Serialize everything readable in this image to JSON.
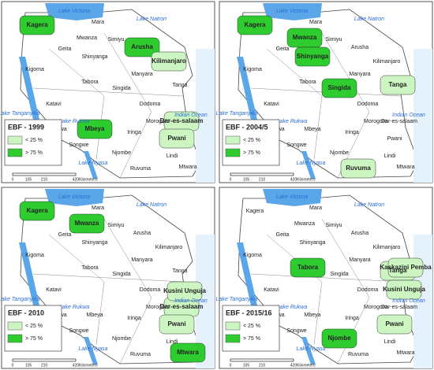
{
  "panels": [
    {
      "title": "EBF - 1999",
      "legend": [
        {
          "label": "< 25 %",
          "color": "#ccf5c2"
        },
        {
          "label": "> 75 %",
          "color": "#2ecc2e"
        }
      ],
      "scale": [
        0,
        105,
        210,
        420
      ],
      "scale_unit": "Kilometers",
      "labels": [
        "Lake Victoria",
        "Lake Natron",
        "Mara",
        {
          "text": "Kagera",
          "color": "#2ecc2e"
        },
        "Mwanza",
        "Geita",
        "Simiyu",
        "Shinyanga",
        {
          "text": "Arusha",
          "color": "#2ecc2e"
        },
        {
          "text": "Kilimanjaro",
          "color": "#ccf5c2"
        },
        "Manyara",
        "Kigoma",
        "Tabora",
        "Singida",
        "Tanga",
        "Indian Ocean",
        "Katavi",
        "Dodoma",
        "Lake Tanganyika",
        "Rukwa",
        {
          "text": "Mbeya",
          "color": "#2ecc2e"
        },
        "Iringa",
        "Morogoro",
        {
          "text": "Dar-es-salaam",
          "color": "#ccf5c2"
        },
        {
          "text": "Pwani",
          "color": "#ccf5c2"
        },
        "Lake Rukwa",
        "Songwe",
        "Njombe",
        "Lindi",
        "Lake Nyasa",
        "Ruvuma",
        "Mtwara"
      ]
    },
    {
      "title": "EBF - 2004/5",
      "legend": [
        {
          "label": "< 25 %",
          "color": "#ccf5c2"
        },
        {
          "label": "> 75 %",
          "color": "#2ecc2e"
        }
      ],
      "scale": [
        0,
        105,
        210,
        420
      ],
      "scale_unit": "Kilometers",
      "labels": [
        "Lake Victoria",
        "Lake Natron",
        "Mara",
        {
          "text": "Kagera",
          "color": "#2ecc2e"
        },
        {
          "text": "Mwanza",
          "color": "#2ecc2e"
        },
        "Geita",
        "Simiyu",
        {
          "text": "Shinyanga",
          "color": "#2ecc2e"
        },
        "Arusha",
        "Kilimanjaro",
        "Manyara",
        "Kigoma",
        "Tabora",
        {
          "text": "Singida",
          "color": "#2ecc2e"
        },
        {
          "text": "Tanga",
          "color": "#ccf5c2"
        },
        "Indian Ocean",
        "Katavi",
        "Dodoma",
        "Lake Tanganyika",
        "Rukwa",
        "Mbeya",
        "Iringa",
        "Morogoro",
        "Dar-es-salaam",
        "Pwani",
        "Lake Rukwa",
        "Songwe",
        "Njombe",
        "Lindi",
        "Lake Nyasa",
        {
          "text": "Ruvuma",
          "color": "#ccf5c2"
        },
        "Mtwara"
      ]
    },
    {
      "title": "EBF - 2010",
      "legend": [
        {
          "label": "< 25 %",
          "color": "#ccf5c2"
        },
        {
          "label": "> 75 %",
          "color": "#2ecc2e"
        }
      ],
      "scale": [
        0,
        105,
        210,
        420
      ],
      "scale_unit": "Kilometers",
      "labels": [
        "Lake Victoria",
        "Lake Natron",
        "Mara",
        {
          "text": "Kagera",
          "color": "#2ecc2e"
        },
        {
          "text": "Mwanza",
          "color": "#2ecc2e"
        },
        "Geita",
        "Simiyu",
        "Shinyanga",
        "Arusha",
        "Kilimanjaro",
        "Manyara",
        "Kigoma",
        "Tabora",
        "Singida",
        "Tanga",
        "Indian Ocean",
        "Katavi",
        "Dodoma",
        "Lake Tanganyika",
        "Rukwa",
        "Mbeya",
        "Iringa",
        "Morogoro",
        {
          "text": "Dar-es-salaam",
          "color": "#ccf5c2"
        },
        {
          "text": "Pwani",
          "color": "#ccf5c2"
        },
        "Lake Rukwa",
        "Songwe",
        "Njombe",
        "Lindi",
        "Lake Nyasa",
        "Ruvuma",
        {
          "text": "Mtwara",
          "color": "#2ecc2e"
        },
        {
          "text": "Kusini Unguja",
          "color": "#ccf5c2"
        }
      ]
    },
    {
      "title": "EBF - 2015/16",
      "legend": [
        {
          "label": "< 25 %",
          "color": "#ccf5c2"
        },
        {
          "label": "> 75 %",
          "color": "#2ecc2e"
        }
      ],
      "scale": [
        0,
        105,
        210,
        420
      ],
      "scale_unit": "Kilometers",
      "labels": [
        "Lake Victoria",
        "Lake Natron",
        "Mara",
        "Kagera",
        "Mwanza",
        "Geita",
        "Simiyu",
        "Shinyanga",
        "Arusha",
        "Kilimanjaro",
        "Manyara",
        "Kigoma",
        {
          "text": "Tabora",
          "color": "#2ecc2e"
        },
        "Singida",
        {
          "text": "Tanga",
          "color": "#ccf5c2"
        },
        "Indian Ocean",
        "Katavi",
        "Dodoma",
        "Lake Tanganyika",
        "Rukwa",
        "Mbeya",
        "Iringa",
        "Morogoro",
        "Dar-es-salaam",
        {
          "text": "Pwani",
          "color": "#ccf5c2"
        },
        "Lake Rukwa",
        "Songwe",
        {
          "text": "Njombe",
          "color": "#2ecc2e"
        },
        "Lindi",
        "Lake Nyasa",
        "Ruvuma",
        "Mtwara",
        {
          "text": "Kaskazini Pemba",
          "color": "#ccf5c2"
        },
        {
          "text": "Kusini Unguja",
          "color": "#ccf5c2"
        }
      ]
    }
  ]
}
